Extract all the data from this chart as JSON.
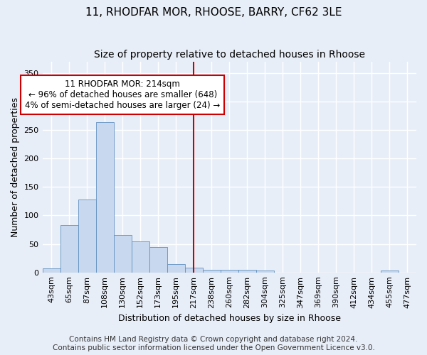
{
  "title1": "11, RHODFAR MOR, RHOOSE, BARRY, CF62 3LE",
  "title2": "Size of property relative to detached houses in Rhoose",
  "xlabel": "Distribution of detached houses by size in Rhoose",
  "ylabel": "Number of detached properties",
  "footer1": "Contains HM Land Registry data © Crown copyright and database right 2024.",
  "footer2": "Contains public sector information licensed under the Open Government Licence v3.0.",
  "annotation_line1": "11 RHODFAR MOR: 214sqm",
  "annotation_line2": "← 96% of detached houses are smaller (648)",
  "annotation_line3": "4% of semi-detached houses are larger (24) →",
  "bin_labels": [
    "43sqm",
    "65sqm",
    "87sqm",
    "108sqm",
    "130sqm",
    "152sqm",
    "173sqm",
    "195sqm",
    "217sqm",
    "238sqm",
    "260sqm",
    "282sqm",
    "304sqm",
    "325sqm",
    "347sqm",
    "369sqm",
    "390sqm",
    "412sqm",
    "434sqm",
    "455sqm",
    "477sqm"
  ],
  "bar_values": [
    7,
    83,
    128,
    263,
    65,
    55,
    44,
    14,
    8,
    4,
    5,
    5,
    3,
    0,
    0,
    0,
    0,
    0,
    0,
    3,
    0
  ],
  "bar_color": "#c8d8ee",
  "bar_edge_color": "#6090c0",
  "redline_index": 8,
  "ylim": [
    0,
    370
  ],
  "yticks": [
    0,
    50,
    100,
    150,
    200,
    250,
    300,
    350
  ],
  "figure_bg": "#e8eef8",
  "plot_bg": "#e8eef8",
  "grid_color": "#ffffff",
  "annotation_box_facecolor": "#ffffff",
  "annotation_box_edgecolor": "#cc0000",
  "redline_color": "#cc0000",
  "title_fontsize": 11,
  "subtitle_fontsize": 10,
  "axis_label_fontsize": 9,
  "tick_fontsize": 8,
  "annotation_fontsize": 8.5,
  "footer_fontsize": 7.5
}
